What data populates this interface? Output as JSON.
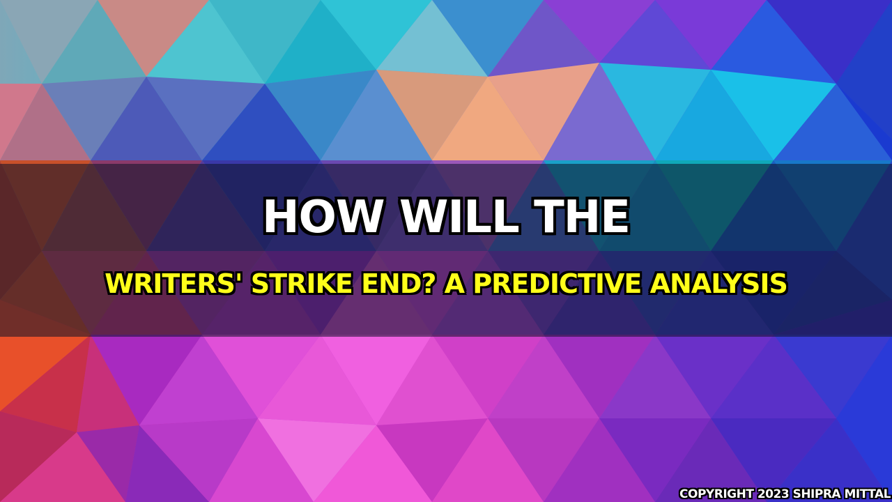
{
  "title": {
    "line1": "HOW WILL THE",
    "line2": "WRITERS' STRIKE END? A PREDICTIVE ANALYSIS"
  },
  "copyright": "COPYRIGHT 2023 SHIPRA MITTAL",
  "colors": {
    "line1_text": "#ffffff",
    "line2_text": "#ffff1a",
    "outline": "#000000"
  }
}
